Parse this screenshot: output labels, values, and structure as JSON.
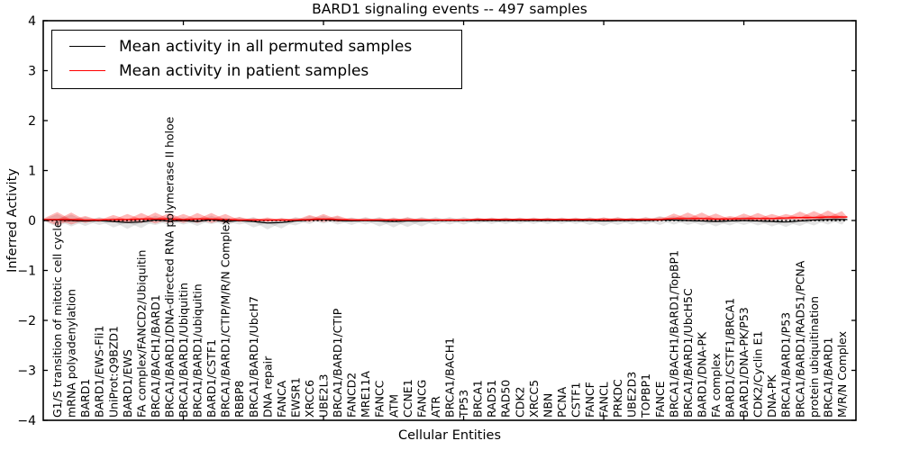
{
  "title": "BARD1 signaling events -- 497 samples",
  "legend": {
    "items": [
      {
        "label": "Mean activity in all permuted samples",
        "color": "#000000"
      },
      {
        "label": "Mean activity in patient samples",
        "color": "#ff0000"
      }
    ]
  },
  "chart_data": {
    "type": "area",
    "title": "BARD1 signaling events -- 497 samples",
    "xlabel": "Cellular Entities",
    "ylabel": "Inferred Activity",
    "ylim": [
      -4,
      4
    ],
    "yticks": [
      4,
      3,
      2,
      1,
      0,
      -1,
      -2,
      -3,
      -4
    ],
    "ytick_labels": [
      "4",
      "3",
      "2",
      "1",
      "0",
      "−1",
      "−2",
      "−3",
      "−4"
    ],
    "xticks_major": [
      10,
      20,
      30,
      40,
      50
    ],
    "grid": false,
    "legend_position": "upper left",
    "zero_line": {
      "y": 0,
      "style": "dotted",
      "color": "#000000"
    },
    "colors": {
      "permuted_line": "#000000",
      "patient_line": "#ff0000",
      "permuted_band": "rgba(128,128,128,0.22)",
      "patient_band": "rgba(255,0,0,0.28)"
    },
    "categories": [
      "G1/S transition of mitotic cell cycle",
      "mRNA polyadenylation",
      "BARD1",
      "BARD1/EWS-Fli1",
      "UniProt:Q9BZD1",
      "BARD1/EWS",
      "FA complex/FANCD2/Ubiquitin",
      "BRCA1/BACH1/BARD1",
      "BRCA1/BARD1/DNA-directed RNA polymerase II holoe",
      "BRCA1/BARD1/Ubiquitin",
      "BRCA1/BARD1/ubiquitin",
      "BARD1/CSTF1",
      "BRCA1/BARD1/CTIP/M/R/N Complex",
      "RBBP8",
      "BRCA1/BARD1/UbcH7",
      "DNA repair",
      "FANCA",
      "EWSR1",
      "XRCC6",
      "UBE2L3",
      "BRCA1/BARD1/CTIP",
      "FANCD2",
      "MRE11A",
      "FANCC",
      "ATM",
      "CCNE1",
      "FANCG",
      "ATR",
      "BRCA1/BACH1",
      "TP53",
      "BRCA1",
      "RAD51",
      "RAD50",
      "CDK2",
      "XRCC5",
      "NBN",
      "PCNA",
      "CSTF1",
      "FANCF",
      "FANCL",
      "PRKDC",
      "UBE2D3",
      "TOPBP1",
      "FANCE",
      "BRCA1/BACH1/BARD1/TopBP1",
      "BRCA1/BARD1/UbcH5C",
      "BARD1/DNA-PK",
      "FA complex",
      "BARD1/CSTF1/BRCA1",
      "BARD1/DNA-PK/P53",
      "CDK2/Cyclin E1",
      "DNA-PK",
      "BRCA1/BARD1/P53",
      "BRCA1/BARD1/RAD51/PCNA",
      "protein ubiquitination",
      "BRCA1/BARD1",
      "M/R/N Complex"
    ],
    "series": {
      "permuted_mean": [
        0.01,
        0.0,
        -0.01,
        0.0,
        -0.02,
        -0.04,
        -0.03,
        0.01,
        -0.01,
        0.0,
        -0.02,
        0.02,
        -0.02,
        0.0,
        -0.02,
        -0.05,
        -0.04,
        -0.01,
        0.01,
        0.02,
        0.0,
        -0.01,
        0.0,
        -0.01,
        -0.02,
        -0.01,
        -0.01,
        0.0,
        0.0,
        0.0,
        0.0,
        0.0,
        0.0,
        0.0,
        0.0,
        0.0,
        0.0,
        0.0,
        0.0,
        -0.01,
        0.0,
        0.0,
        0.0,
        0.01,
        0.01,
        0.0,
        -0.01,
        -0.02,
        -0.01,
        0.0,
        -0.01,
        -0.02,
        -0.03,
        -0.01,
        0.01,
        0.02,
        0.02
      ],
      "patient_mean": [
        0.02,
        0.02,
        0.01,
        0.01,
        0.02,
        0.02,
        0.03,
        0.03,
        0.03,
        0.02,
        0.03,
        0.03,
        0.02,
        0.01,
        0.01,
        0.01,
        0.01,
        0.01,
        0.02,
        0.03,
        0.02,
        0.01,
        0.01,
        0.01,
        0.01,
        0.01,
        0.01,
        0.01,
        0.01,
        0.01,
        0.02,
        0.02,
        0.02,
        0.02,
        0.02,
        0.02,
        0.02,
        0.02,
        0.02,
        0.02,
        0.02,
        0.02,
        0.02,
        0.02,
        0.04,
        0.04,
        0.04,
        0.03,
        0.03,
        0.04,
        0.04,
        0.04,
        0.05,
        0.06,
        0.06,
        0.07,
        0.07
      ],
      "permuted_spread_up": [
        0.12,
        0.12,
        0.08,
        0.07,
        0.08,
        0.08,
        0.08,
        0.09,
        0.09,
        0.07,
        0.08,
        0.08,
        0.08,
        0.07,
        0.09,
        0.1,
        0.09,
        0.08,
        0.08,
        0.08,
        0.08,
        0.07,
        0.07,
        0.08,
        0.08,
        0.08,
        0.08,
        0.07,
        0.07,
        0.07,
        0.06,
        0.06,
        0.06,
        0.06,
        0.06,
        0.06,
        0.06,
        0.06,
        0.07,
        0.07,
        0.07,
        0.06,
        0.07,
        0.08,
        0.08,
        0.08,
        0.08,
        0.08,
        0.08,
        0.08,
        0.08,
        0.08,
        0.09,
        0.09,
        0.09,
        0.09,
        0.09
      ],
      "permuted_spread_down": [
        0.14,
        0.12,
        0.1,
        0.09,
        0.12,
        0.13,
        0.12,
        0.1,
        0.09,
        0.08,
        0.09,
        0.09,
        0.09,
        0.08,
        0.12,
        0.13,
        0.12,
        0.09,
        0.08,
        0.08,
        0.08,
        0.08,
        0.08,
        0.11,
        0.12,
        0.12,
        0.11,
        0.09,
        0.08,
        0.08,
        0.07,
        0.07,
        0.07,
        0.07,
        0.07,
        0.07,
        0.07,
        0.07,
        0.09,
        0.1,
        0.09,
        0.08,
        0.08,
        0.1,
        0.09,
        0.09,
        0.09,
        0.1,
        0.09,
        0.09,
        0.09,
        0.1,
        0.1,
        0.1,
        0.11,
        0.1,
        0.1
      ],
      "patient_spread_up": [
        0.15,
        0.14,
        0.08,
        0.04,
        0.09,
        0.11,
        0.12,
        0.13,
        0.12,
        0.11,
        0.12,
        0.12,
        0.11,
        0.06,
        0.04,
        0.05,
        0.04,
        0.04,
        0.09,
        0.1,
        0.08,
        0.04,
        0.04,
        0.04,
        0.04,
        0.05,
        0.04,
        0.03,
        0.03,
        0.03,
        0.03,
        0.03,
        0.03,
        0.03,
        0.03,
        0.03,
        0.03,
        0.03,
        0.03,
        0.04,
        0.04,
        0.03,
        0.04,
        0.05,
        0.1,
        0.12,
        0.12,
        0.11,
        0.06,
        0.1,
        0.11,
        0.09,
        0.08,
        0.12,
        0.13,
        0.13,
        0.12
      ],
      "patient_spread_down": [
        0.12,
        0.1,
        0.06,
        0.04,
        0.06,
        0.07,
        0.08,
        0.09,
        0.08,
        0.07,
        0.08,
        0.08,
        0.07,
        0.04,
        0.03,
        0.04,
        0.03,
        0.03,
        0.05,
        0.06,
        0.05,
        0.03,
        0.03,
        0.03,
        0.03,
        0.03,
        0.03,
        0.03,
        0.03,
        0.03,
        0.02,
        0.02,
        0.02,
        0.02,
        0.02,
        0.02,
        0.02,
        0.02,
        0.02,
        0.03,
        0.03,
        0.02,
        0.03,
        0.03,
        0.05,
        0.06,
        0.06,
        0.06,
        0.04,
        0.05,
        0.06,
        0.05,
        0.05,
        0.06,
        0.07,
        0.07,
        0.06
      ]
    }
  }
}
